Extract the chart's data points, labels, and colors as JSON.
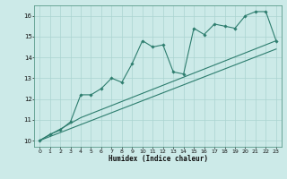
{
  "title": "",
  "xlabel": "Humidex (Indice chaleur)",
  "ylabel": "",
  "bg_color": "#cceae8",
  "grid_color": "#aad4d0",
  "line_color": "#2d7d6e",
  "xlim": [
    -0.5,
    23.5
  ],
  "ylim": [
    9.7,
    16.5
  ],
  "xticks": [
    0,
    1,
    2,
    3,
    4,
    5,
    6,
    7,
    8,
    9,
    10,
    11,
    12,
    13,
    14,
    15,
    16,
    17,
    18,
    19,
    20,
    21,
    22,
    23
  ],
  "yticks": [
    10,
    11,
    12,
    13,
    14,
    15,
    16
  ],
  "main_x": [
    0,
    1,
    2,
    3,
    4,
    5,
    6,
    7,
    8,
    9,
    10,
    11,
    12,
    13,
    14,
    15,
    16,
    17,
    18,
    19,
    20,
    21,
    22,
    23
  ],
  "main_y": [
    10.0,
    10.3,
    10.5,
    10.9,
    12.2,
    12.2,
    12.5,
    13.0,
    12.8,
    13.7,
    14.8,
    14.5,
    14.6,
    13.3,
    13.2,
    15.4,
    15.1,
    15.6,
    15.5,
    15.4,
    16.0,
    16.2,
    16.2,
    14.8
  ],
  "line2_x": [
    0,
    4,
    23
  ],
  "line2_y": [
    10.0,
    11.1,
    14.8
  ],
  "line3_x": [
    0,
    23
  ],
  "line3_y": [
    10.0,
    14.4
  ]
}
